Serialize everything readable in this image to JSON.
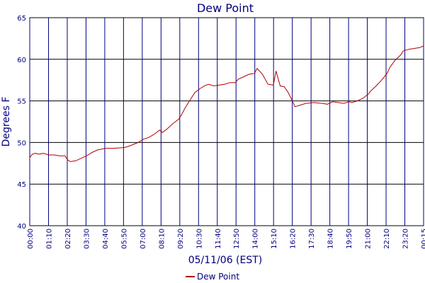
{
  "chart_data": {
    "type": "line",
    "title": "Dew Point",
    "xlabel": "05/11/06 (EST)",
    "ylabel": "Degrees F",
    "ylim": [
      40,
      65
    ],
    "yticks": [
      "40",
      "45",
      "50",
      "55",
      "60",
      "65"
    ],
    "xticks": [
      "00:00",
      "01:10",
      "02:20",
      "03:30",
      "04:40",
      "05:50",
      "07:00",
      "08:10",
      "09:20",
      "10:30",
      "11:40",
      "12:50",
      "14:00",
      "15:10",
      "16:20",
      "17:30",
      "18:40",
      "19:50",
      "21:00",
      "22:10",
      "23:20",
      "00:15"
    ],
    "grid": true,
    "legend_position": "bottom",
    "series": [
      {
        "name": "Dew Point",
        "color": "#b00000",
        "x": [
          "00:00",
          "00:10",
          "00:20",
          "00:35",
          "00:50",
          "01:10",
          "01:30",
          "01:50",
          "02:10",
          "02:20",
          "02:30",
          "02:50",
          "03:10",
          "03:30",
          "03:50",
          "04:10",
          "04:40",
          "05:10",
          "05:50",
          "06:10",
          "06:40",
          "07:00",
          "07:20",
          "07:40",
          "08:00",
          "08:10",
          "08:30",
          "08:50",
          "09:10",
          "09:20",
          "09:35",
          "09:50",
          "10:10",
          "10:30",
          "10:45",
          "11:00",
          "11:20",
          "11:40",
          "12:00",
          "12:20",
          "12:40",
          "12:50",
          "13:10",
          "13:30",
          "13:50",
          "14:00",
          "14:20",
          "14:40",
          "15:00",
          "15:10",
          "15:25",
          "15:40",
          "15:55",
          "16:10",
          "16:20",
          "16:40",
          "17:00",
          "17:30",
          "18:00",
          "18:20",
          "18:40",
          "19:00",
          "19:20",
          "19:40",
          "19:50",
          "20:10",
          "20:30",
          "20:50",
          "21:00",
          "21:20",
          "21:40",
          "22:00",
          "22:10",
          "22:30",
          "22:50",
          "23:00",
          "23:20",
          "23:40",
          "00:00",
          "00:15"
        ],
        "values": [
          48.2,
          48.6,
          48.7,
          48.6,
          48.7,
          48.5,
          48.5,
          48.4,
          48.4,
          47.9,
          47.7,
          47.8,
          48.1,
          48.4,
          48.8,
          49.1,
          49.3,
          49.3,
          49.4,
          49.6,
          50.0,
          50.4,
          50.6,
          51.0,
          51.5,
          51.2,
          51.7,
          52.3,
          52.8,
          53.3,
          54.2,
          55.0,
          56.0,
          56.5,
          56.8,
          57.0,
          56.8,
          56.9,
          57.0,
          57.2,
          57.2,
          57.6,
          57.9,
          58.2,
          58.3,
          58.9,
          58.2,
          57.0,
          56.9,
          58.6,
          56.8,
          56.7,
          56.0,
          55.0,
          54.3,
          54.5,
          54.7,
          54.8,
          54.7,
          54.6,
          54.9,
          54.8,
          54.7,
          54.9,
          54.8,
          55.0,
          55.3,
          55.8,
          56.2,
          56.8,
          57.5,
          58.3,
          59.0,
          59.9,
          60.5,
          61.0,
          61.2,
          61.3,
          61.4,
          61.6
        ]
      }
    ]
  }
}
